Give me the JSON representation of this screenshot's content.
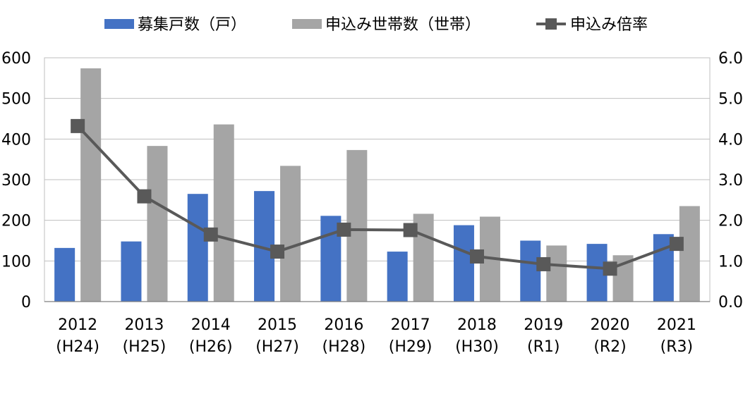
{
  "chart_data": {
    "type": "bar",
    "categories": [
      [
        "2012",
        "(H24)"
      ],
      [
        "2013",
        "(H25)"
      ],
      [
        "2014",
        "(H26)"
      ],
      [
        "2015",
        "(H27)"
      ],
      [
        "2016",
        "(H28)"
      ],
      [
        "2017",
        "(H29)"
      ],
      [
        "2018",
        "(H30)"
      ],
      [
        "2019",
        "(R1)"
      ],
      [
        "2020",
        "(R2)"
      ],
      [
        "2021",
        "(R3)"
      ]
    ],
    "series": [
      {
        "name": "募集戸数（戸）",
        "type": "bar",
        "axis": "left",
        "color": "#4472C4",
        "values": [
          132,
          148,
          265,
          272,
          211,
          123,
          188,
          150,
          142,
          166
        ]
      },
      {
        "name": "申込み世帯数（世帯）",
        "type": "bar",
        "axis": "left",
        "color": "#A5A5A5",
        "values": [
          574,
          383,
          436,
          334,
          373,
          216,
          209,
          138,
          114,
          235
        ]
      },
      {
        "name": "申込み倍率",
        "type": "line",
        "axis": "right",
        "color": "#595959",
        "values": [
          4.32,
          2.59,
          1.65,
          1.23,
          1.77,
          1.76,
          1.11,
          0.92,
          0.81,
          1.42
        ]
      }
    ],
    "left_axis": {
      "ylim": [
        0,
        600
      ],
      "ticks": [
        "0",
        "100",
        "200",
        "300",
        "400",
        "500",
        "600"
      ]
    },
    "right_axis": {
      "ylim": [
        0,
        6
      ],
      "ticks": [
        "0.0",
        "1.0",
        "2.0",
        "3.0",
        "4.0",
        "5.0",
        "6.0"
      ]
    },
    "grid": true,
    "legend_position": "top-center"
  }
}
